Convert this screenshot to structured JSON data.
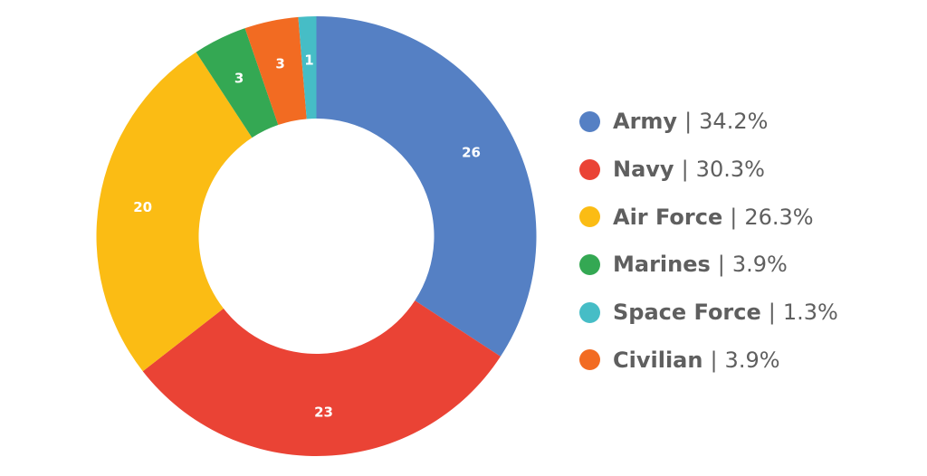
{
  "chart_data": {
    "type": "pie",
    "variant": "donut",
    "slices": [
      {
        "name": "Army",
        "value": 26,
        "color": "#5580c4"
      },
      {
        "name": "Navy",
        "value": 23,
        "color": "#ea4335"
      },
      {
        "name": "Air Force",
        "value": 20,
        "color": "#fbbc14"
      },
      {
        "name": "Marines",
        "value": 3,
        "color": "#34a853"
      },
      {
        "name": "Civilian",
        "value": 3,
        "color": "#f26b22"
      },
      {
        "name": "Space Force",
        "value": 1,
        "color": "#46bdc6"
      }
    ],
    "legend_placement": "right",
    "legend": [
      {
        "name": "Army",
        "percent": "34.2%",
        "color": "#5580c4"
      },
      {
        "name": "Navy",
        "percent": "30.3%",
        "color": "#ea4335"
      },
      {
        "name": "Air Force",
        "percent": "26.3%",
        "color": "#fbbc14"
      },
      {
        "name": "Marines",
        "percent": "3.9%",
        "color": "#34a853"
      },
      {
        "name": "Space Force",
        "percent": "1.3%",
        "color": "#46bdc6"
      },
      {
        "name": "Civilian",
        "percent": "3.9%",
        "color": "#f26b22"
      }
    ],
    "separator": "|"
  }
}
